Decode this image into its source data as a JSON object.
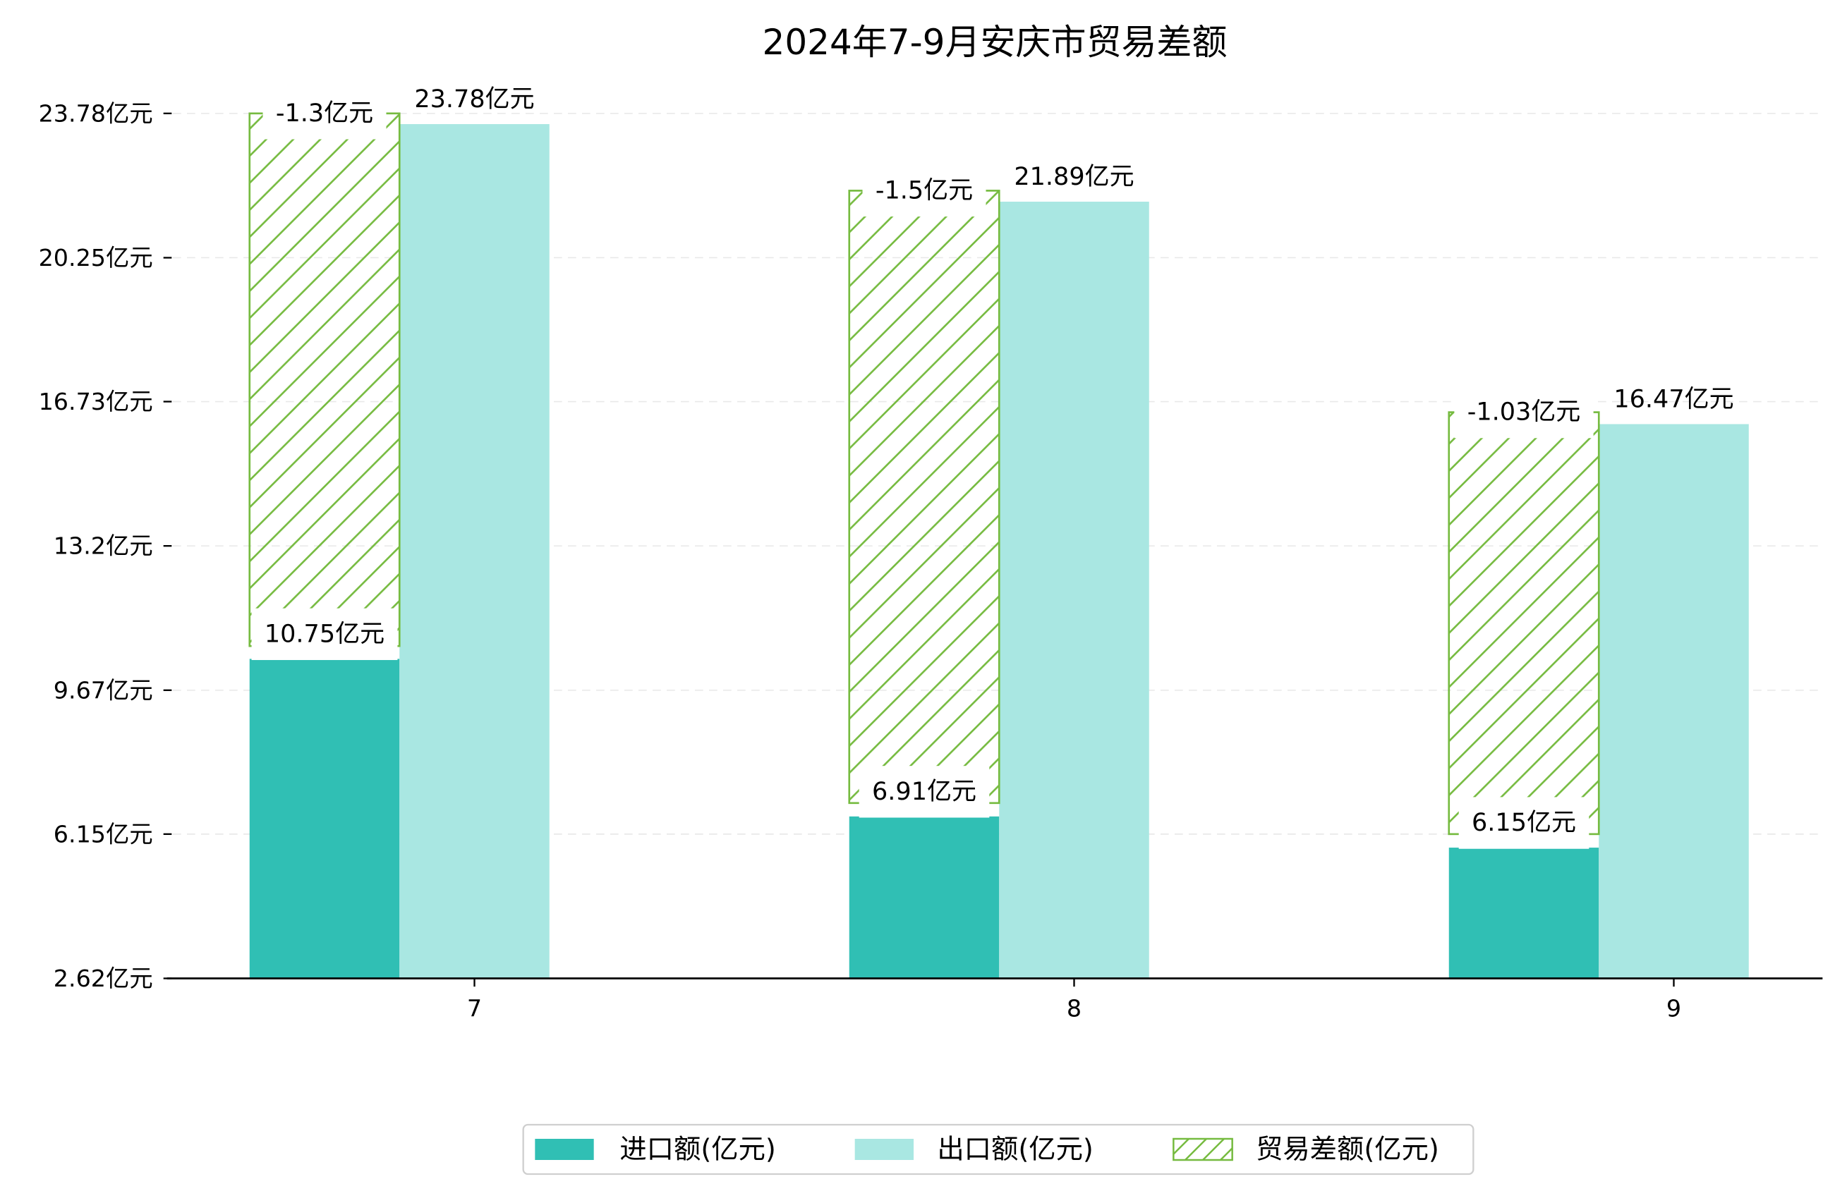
{
  "chart_data": {
    "type": "bar",
    "title": "2024年7-9月安庆市贸易差额",
    "categories": [
      "7",
      "8",
      "9"
    ],
    "series": [
      {
        "name": "进口额(亿元)",
        "values": [
          10.75,
          6.91,
          6.15
        ],
        "value_labels": [
          "10.75亿元",
          "6.91亿元",
          "6.15亿元"
        ],
        "color": "#30bfb4"
      },
      {
        "name": "出口额(亿元)",
        "values": [
          23.78,
          21.89,
          16.47
        ],
        "value_labels": [
          "23.78亿元",
          "21.89亿元",
          "16.47亿元"
        ],
        "color": "#a9e7e2"
      },
      {
        "name": "贸易差额(亿元)",
        "values": [
          -1.3,
          -1.5,
          -1.03
        ],
        "value_labels": [
          "-1.3亿元",
          "-1.5亿元",
          "-1.03亿元"
        ],
        "color": "#76bb40"
      }
    ],
    "y_ticks": [
      23.78,
      20.25,
      16.73,
      13.2,
      9.67,
      6.15,
      2.62
    ],
    "y_tick_labels": [
      "23.78亿元",
      "20.25亿元",
      "16.73亿元",
      "13.2亿元",
      "9.67亿元",
      "6.15亿元",
      "2.62亿元"
    ],
    "ylim": [
      2.62,
      23.78
    ],
    "grid": true,
    "legend": "bottom"
  }
}
